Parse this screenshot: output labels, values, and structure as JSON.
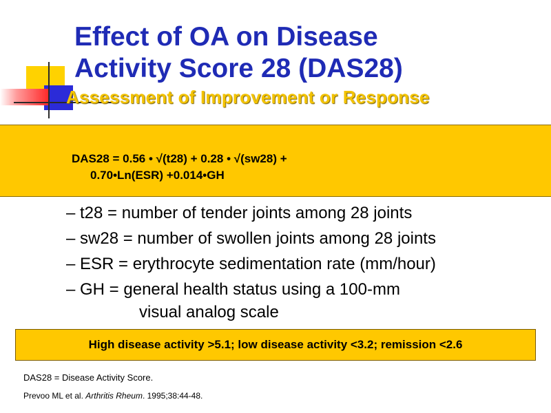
{
  "title": {
    "line1": "Effect of OA on Disease",
    "line2": "Activity Score 28 (DAS28)"
  },
  "subtitle": "Assessment of Improvement or Response",
  "formula": {
    "line1": "DAS28 = 0.56 • √(t28) + 0.28 • √(sw28) +",
    "line2": "0.70•Ln(ESR) +0.014•GH"
  },
  "definitions": [
    {
      "text": "– t28 = number of tender joints among 28 joints"
    },
    {
      "text": "– sw28 = number of swollen joints among 28 joints"
    },
    {
      "text": "– ESR = erythrocyte sedimentation rate (mm/hour)"
    },
    {
      "text": "– GH = general health status using a 100-mm",
      "continuation": "visual analog scale"
    }
  ],
  "thresholds": "High disease activity >5.1; low disease activity <3.2; remission <2.6",
  "footnote": "DAS28 = Disease Activity Score.",
  "reference": {
    "authors": "Prevoo ML et al. ",
    "journal": "Arthritis Rheum",
    "citation": ". 1995;38:44-48."
  },
  "colors": {
    "title": "#1f2bb5",
    "subtitle": "#f3c300",
    "highlight_box": "#ffc800",
    "accent_yellow": "#ffd200",
    "accent_blue": "#2b2bd8",
    "accent_red": "#ff2a2a"
  }
}
